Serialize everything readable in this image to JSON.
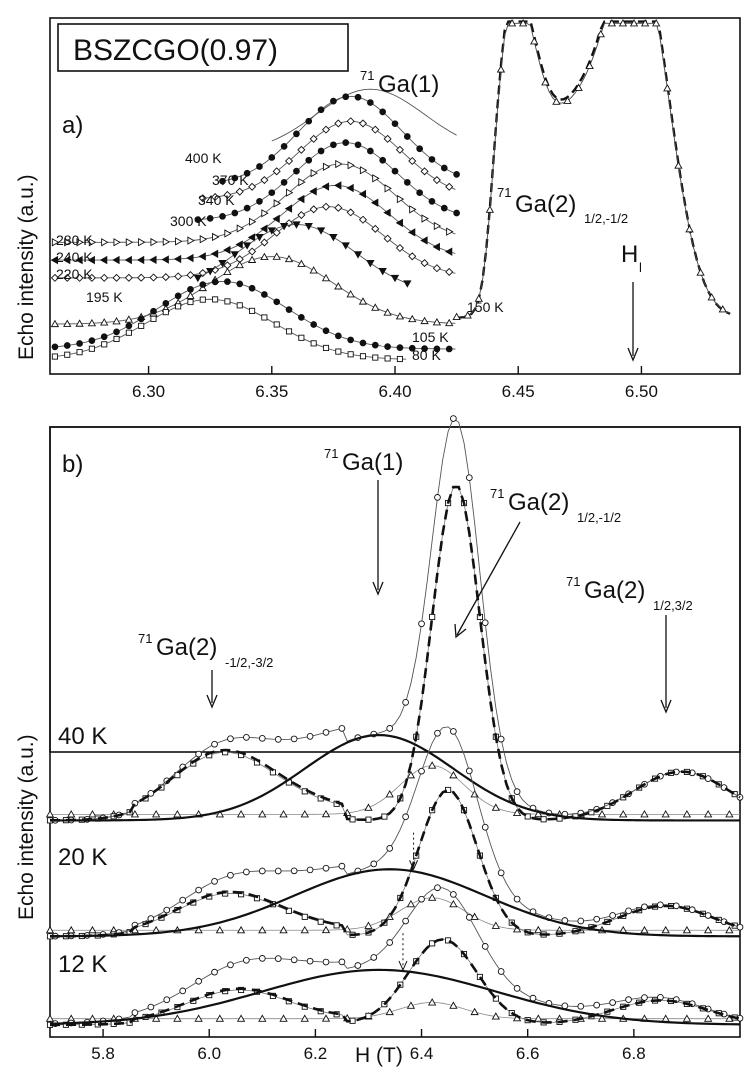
{
  "title": "BSZCGO(0.97)",
  "colors": {
    "ink": "#111111",
    "background": "#ffffff",
    "gray": "#777777"
  },
  "chart_data": [
    {
      "panel": "a)",
      "type": "line",
      "xlabel": "",
      "ylabel": "Echo intensity (a.u.)",
      "xlim": [
        6.26,
        6.54
      ],
      "ylim": [
        0,
        1
      ],
      "xticks": [
        "6.30",
        "6.35",
        "6.40",
        "6.45",
        "6.50"
      ],
      "annotations": {
        "ga1": "Ga(1)",
        "ga1_sup": "71",
        "ga2": "Ga(2)",
        "ga2_sup": "71",
        "ga2_sub": "1/2,-1/2",
        "hl": "H",
        "hl_sub": "l"
      },
      "series": [
        {
          "name": "400 K",
          "marker": "line",
          "filled": false,
          "offset": 0.62,
          "mu": 6.39,
          "sigma": 0.022,
          "amp": 0.18,
          "start": 6.35,
          "end": 6.425
        },
        {
          "name": "370 K",
          "marker": "circle",
          "filled": true,
          "offset": 0.53,
          "mu": 6.382,
          "sigma": 0.021,
          "amp": 0.25,
          "start": 6.33,
          "end": 6.425
        },
        {
          "name": "340 K",
          "marker": "diamond",
          "filled": false,
          "offset": 0.49,
          "mu": 6.382,
          "sigma": 0.021,
          "amp": 0.22,
          "start": 6.322,
          "end": 6.425
        },
        {
          "name": "300 K",
          "marker": "circle",
          "filled": true,
          "offset": 0.43,
          "mu": 6.38,
          "sigma": 0.021,
          "amp": 0.22,
          "start": 6.32,
          "end": 6.425
        },
        {
          "name": "280 K",
          "marker": "tri-right",
          "filled": false,
          "offset": 0.37,
          "mu": 6.378,
          "sigma": 0.022,
          "amp": 0.22,
          "start": 6.262,
          "end": 6.425
        },
        {
          "name": "240 K",
          "marker": "tri-left",
          "filled": true,
          "offset": 0.32,
          "mu": 6.376,
          "sigma": 0.022,
          "amp": 0.21,
          "start": 6.262,
          "end": 6.425
        },
        {
          "name": "220 K",
          "marker": "diamond",
          "filled": false,
          "offset": 0.27,
          "mu": 6.373,
          "sigma": 0.022,
          "amp": 0.2,
          "start": 6.262,
          "end": 6.425
        },
        {
          "name": "195 K",
          "marker": "tri-down",
          "filled": true,
          "offset": 0.22,
          "mu": 6.36,
          "sigma": 0.024,
          "amp": 0.2,
          "start": 6.32,
          "end": 6.405
        },
        {
          "name": "150 K",
          "marker": "triangle",
          "filled": false,
          "offset": 0.14,
          "mu": 6.35,
          "sigma": 0.025,
          "amp": 0.19,
          "start": 6.262,
          "end": 6.425
        },
        {
          "name": "105 K",
          "marker": "circle",
          "filled": true,
          "offset": 0.07,
          "mu": 6.33,
          "sigma": 0.026,
          "amp": 0.19,
          "start": 6.262,
          "end": 6.425
        },
        {
          "name": "80 K",
          "marker": "square",
          "filled": false,
          "offset": 0.04,
          "mu": 6.325,
          "sigma": 0.026,
          "amp": 0.17,
          "start": 6.262,
          "end": 6.405
        }
      ],
      "ga2_peaks": {
        "line": "open triangles",
        "fit": "dashed",
        "x": [
          6.44,
          6.44,
          6.448,
          6.47,
          6.5,
          6.53
        ],
        "peaks": [
          6.447,
          6.5
        ]
      }
    },
    {
      "panel": "b)",
      "type": "line",
      "xlabel": "H (T)",
      "ylabel": "Echo intensity (a.u.)",
      "xlim": [
        5.7,
        7.0
      ],
      "ylim": [
        0,
        1
      ],
      "xticks": [
        "5.8",
        "6.0",
        "6.2",
        "6.4",
        "6.6",
        "6.8"
      ],
      "annotations": {
        "ga1": "Ga(1)",
        "ga1_sup": "71",
        "ga2a": "Ga(2)",
        "ga2a_sup": "71",
        "ga2a_sub": "1/2,-1/2",
        "ga2b": "Ga(2)",
        "ga2b_sup": "71",
        "ga2b_sub": "-1/2,-3/2",
        "ga2c": "Ga(2)",
        "ga2c_sup": "71",
        "ga2c_sub": "1/2,3/2"
      },
      "temperatures": [
        "40 K",
        "20 K",
        "12 K"
      ],
      "traces": [
        {
          "temp": "40 K",
          "baseline": 0.355,
          "ga1_center": 6.32,
          "ga1_amp": 0.14,
          "ga2_center": 6.465,
          "ga2_amp": 0.55,
          "sat_left": 6.02,
          "sat_right": 6.89,
          "sat_amp": 0.08
        },
        {
          "temp": "20 K",
          "baseline": 0.165,
          "ga1_center": 6.34,
          "ga1_amp": 0.11,
          "ga2_center": 6.45,
          "ga2_amp": 0.24,
          "sat_left": 6.03,
          "sat_right": 6.86,
          "sat_amp": 0.05
        },
        {
          "temp": "12 K",
          "baseline": 0.02,
          "ga1_center": 6.32,
          "ga1_amp": 0.09,
          "ga2_center": 6.44,
          "ga2_amp": 0.14,
          "sat_left": 6.05,
          "sat_right": 6.85,
          "sat_amp": 0.04
        }
      ]
    }
  ]
}
